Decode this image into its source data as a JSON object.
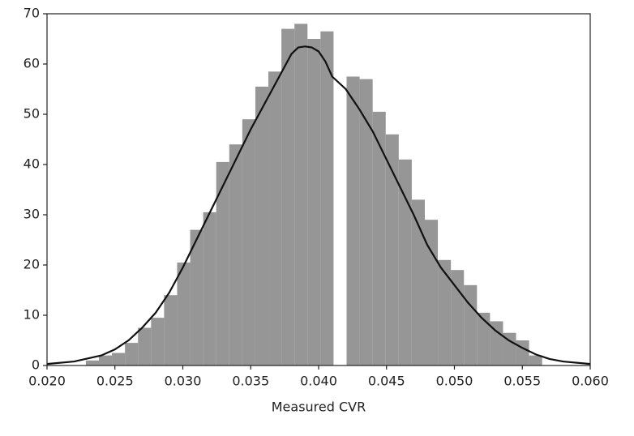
{
  "chart_data": {
    "type": "histogram",
    "xlabel": "Measured CVR",
    "bins": [
      0.02286,
      0.02382,
      0.02478,
      0.02574,
      0.0267,
      0.02766,
      0.02862,
      0.02958,
      0.03054,
      0.0315,
      0.03246,
      0.03342,
      0.03438,
      0.03534,
      0.0363,
      0.03726,
      0.03822,
      0.03918,
      0.04014,
      0.0411,
      0.04206,
      0.04302,
      0.04398,
      0.04494,
      0.0459,
      0.04686,
      0.04782,
      0.04878,
      0.04974,
      0.0507,
      0.05166,
      0.05262,
      0.05358,
      0.05454,
      0.0555,
      0.05646
    ],
    "counts": [
      1,
      2,
      2.5,
      4.5,
      7.5,
      9.5,
      14,
      20.5,
      27,
      30.5,
      40.5,
      44,
      49,
      55.5,
      58.5,
      67,
      68,
      65,
      66.5,
      0,
      57.5,
      57,
      50.5,
      46,
      41,
      33,
      29,
      21,
      19,
      16,
      10.5,
      8.8,
      6.5,
      5,
      2
    ],
    "color": "#969696",
    "kde": {
      "color": "#111111",
      "x": [
        0.02,
        0.022,
        0.024,
        0.025,
        0.026,
        0.027,
        0.028,
        0.029,
        0.03,
        0.031,
        0.032,
        0.033,
        0.034,
        0.035,
        0.036,
        0.037,
        0.038,
        0.0385,
        0.039,
        0.0395,
        0.04,
        0.0405,
        0.041,
        0.042,
        0.043,
        0.044,
        0.045,
        0.046,
        0.047,
        0.048,
        0.049,
        0.05,
        0.051,
        0.052,
        0.053,
        0.054,
        0.055,
        0.056,
        0.057,
        0.058,
        0.06
      ],
      "values": [
        0.3,
        0.8,
        2,
        3.2,
        5,
        7.5,
        10.5,
        14.5,
        19.5,
        25,
        30.5,
        36,
        41.5,
        47,
        52,
        57,
        62,
        63.3,
        63.5,
        63.3,
        62.5,
        60.5,
        57.5,
        55,
        51,
        46.5,
        41,
        35.5,
        30,
        24,
        19.5,
        16,
        12.5,
        9.5,
        7,
        5,
        3.5,
        2.2,
        1.3,
        0.8,
        0.3
      ]
    },
    "xlim": [
      0.02,
      0.06
    ],
    "xticks": [
      {
        "value": 0.02,
        "label": "0.020"
      },
      {
        "value": 0.025,
        "label": "0.025"
      },
      {
        "value": 0.03,
        "label": "0.030"
      },
      {
        "value": 0.035,
        "label": "0.035"
      },
      {
        "value": 0.04,
        "label": "0.040"
      },
      {
        "value": 0.045,
        "label": "0.045"
      },
      {
        "value": 0.05,
        "label": "0.050"
      },
      {
        "value": 0.055,
        "label": "0.055"
      },
      {
        "value": 0.06,
        "label": "0.060"
      }
    ],
    "ylim": [
      0,
      70
    ],
    "yticks": [
      0,
      10,
      20,
      30,
      40,
      50,
      60,
      70
    ]
  }
}
